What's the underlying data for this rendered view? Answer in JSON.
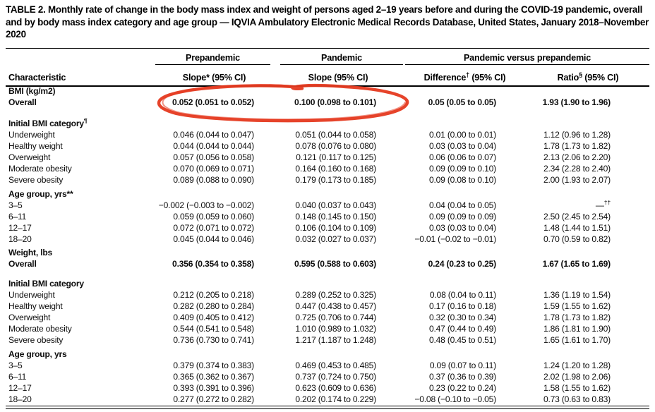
{
  "title": "TABLE 2. Monthly rate of change in the body mass index and weight of persons aged 2–19 years before and during the COVID-19 pandemic, overall and by body mass index category and age group — IQVIA Ambulatory Electronic Medical Records Database, United States, January 2018–November 2020",
  "table": {
    "col_header": "Characteristic",
    "spanners": [
      "Prepandemic",
      "Pandemic",
      "Pandemic versus prepandemic"
    ],
    "sub_headers": [
      {
        "name": "Slope*",
        "sup": "",
        "ci": " (95% CI)"
      },
      {
        "name": "Slope",
        "sup": "",
        "ci": " (95% CI)"
      },
      {
        "name": "Difference",
        "sup": "†",
        "ci": " (95% CI)"
      },
      {
        "name": "Ratio",
        "sup": "§",
        "ci": " (95% CI)"
      }
    ],
    "sections": [
      {
        "label": "BMI (kg/m2)",
        "label_sup": "",
        "space_before": 0,
        "rows": [
          {
            "label": "Overall",
            "bold": true,
            "cells": [
              "0.052 (0.051 to 0.052)",
              "0.100 (0.098 to 0.101)",
              "0.05 (0.05 to 0.05)",
              "1.93 (1.90 to 1.96)"
            ]
          }
        ]
      },
      {
        "label": "Initial BMI category",
        "label_sup": "¶",
        "space_before": 14,
        "rows": [
          {
            "label": "Underweight",
            "bold": false,
            "cells": [
              "0.046 (0.044 to 0.047)",
              "0.051 (0.044 to 0.058)",
              "0.01 (0.00 to 0.01)",
              "1.12 (0.96 to 1.28)"
            ]
          },
          {
            "label": "Healthy weight",
            "bold": false,
            "cells": [
              "0.044 (0.044 to 0.044)",
              "0.078 (0.076 to 0.080)",
              "0.03 (0.03 to 0.04)",
              "1.78 (1.73 to 1.82)"
            ]
          },
          {
            "label": "Overweight",
            "bold": false,
            "cells": [
              "0.057 (0.056 to 0.058)",
              "0.121 (0.117 to 0.125)",
              "0.06 (0.06 to 0.07)",
              "2.13 (2.06 to 2.20)"
            ]
          },
          {
            "label": "Moderate obesity",
            "bold": false,
            "cells": [
              "0.070 (0.069 to 0.071)",
              "0.164 (0.160 to 0.168)",
              "0.09 (0.09 to 0.10)",
              "2.34 (2.28 to 2.40)"
            ]
          },
          {
            "label": "Severe obesity",
            "bold": false,
            "cells": [
              "0.089 (0.088 to 0.090)",
              "0.179 (0.173 to 0.185)",
              "0.09 (0.08 to 0.10)",
              "2.00 (1.93 to 2.07)"
            ]
          }
        ]
      },
      {
        "label": "Age group, yrs**",
        "label_sup": "",
        "space_before": 4,
        "rows": [
          {
            "label": "3–5",
            "bold": false,
            "cells": [
              "−0.002 (−0.003 to −0.002)",
              "0.040 (0.037 to 0.043)",
              "0.04 (0.04 to 0.05)",
              "—††"
            ]
          },
          {
            "label": "6–11",
            "bold": false,
            "cells": [
              "0.059 (0.059 to 0.060)",
              "0.148 (0.145 to 0.150)",
              "0.09 (0.09 to 0.09)",
              "2.50 (2.45 to 2.54)"
            ]
          },
          {
            "label": "12–17",
            "bold": false,
            "cells": [
              "0.072 (0.071 to 0.072)",
              "0.106 (0.104 to 0.109)",
              "0.03 (0.03 to 0.04)",
              "1.48 (1.44 to 1.51)"
            ]
          },
          {
            "label": "18–20",
            "bold": false,
            "cells": [
              "0.045 (0.044 to 0.046)",
              "0.032 (0.027 to 0.037)",
              "−0.01 (−0.02 to −0.01)",
              "0.70 (0.59 to 0.82)"
            ]
          }
        ]
      },
      {
        "label": "Weight, lbs",
        "label_sup": "",
        "space_before": 3,
        "rows": [
          {
            "label": "Overall",
            "bold": true,
            "cells": [
              "0.356 (0.354 to 0.358)",
              "0.595 (0.588 to 0.603)",
              "0.24 (0.23 to 0.25)",
              "1.67 (1.65 to 1.69)"
            ]
          }
        ]
      },
      {
        "label": "Initial BMI category",
        "label_sup": "",
        "space_before": 12,
        "rows": [
          {
            "label": "Underweight",
            "bold": false,
            "cells": [
              "0.212 (0.205 to 0.218)",
              "0.289 (0.252 to 0.325)",
              "0.08 (0.04 to 0.11)",
              "1.36 (1.19 to 1.54)"
            ]
          },
          {
            "label": "Healthy weight",
            "bold": false,
            "cells": [
              "0.282 (0.280 to 0.284)",
              "0.447 (0.438 to 0.457)",
              "0.17 (0.16 to 0.18)",
              "1.59 (1.55 to 1.62)"
            ]
          },
          {
            "label": "Overweight",
            "bold": false,
            "cells": [
              "0.409 (0.405 to 0.412)",
              "0.725 (0.706 to 0.744)",
              "0.32 (0.30 to 0.34)",
              "1.78 (1.73 to 1.82)"
            ]
          },
          {
            "label": "Moderate obesity",
            "bold": false,
            "cells": [
              "0.544 (0.541 to 0.548)",
              "1.010 (0.989 to 1.032)",
              "0.47 (0.44 to 0.49)",
              "1.86 (1.81 to 1.90)"
            ]
          },
          {
            "label": "Severe obesity",
            "bold": false,
            "cells": [
              "0.736 (0.730 to 0.741)",
              "1.217 (1.187 to 1.248)",
              "0.48 (0.45 to 0.51)",
              "1.65 (1.61 to 1.70)"
            ]
          }
        ]
      },
      {
        "label": "Age group, yrs",
        "label_sup": "",
        "space_before": 4,
        "rows": [
          {
            "label": "3–5",
            "bold": false,
            "cells": [
              "0.379 (0.374 to 0.383)",
              "0.469 (0.453 to 0.485)",
              "0.09 (0.07 to 0.11)",
              "1.24 (1.20 to 1.28)"
            ]
          },
          {
            "label": "6–11",
            "bold": false,
            "cells": [
              "0.365 (0.362 to 0.367)",
              "0.737 (0.724 to 0.750)",
              "0.37 (0.36 to 0.39)",
              "2.02 (1.98 to 2.06)"
            ]
          },
          {
            "label": "12–17",
            "bold": false,
            "cells": [
              "0.393 (0.391 to 0.396)",
              "0.623 (0.609 to 0.636)",
              "0.23 (0.22 to 0.24)",
              "1.58 (1.55 to 1.62)"
            ]
          },
          {
            "label": "18–20",
            "bold": false,
            "cells": [
              "0.277 (0.272 to 0.282)",
              "0.202 (0.174 to 0.229)",
              "−0.08 (−0.10 to −0.05)",
              "0.73 (0.63 to 0.83)"
            ]
          }
        ]
      }
    ]
  },
  "annotation": {
    "color": "#e5391f"
  }
}
